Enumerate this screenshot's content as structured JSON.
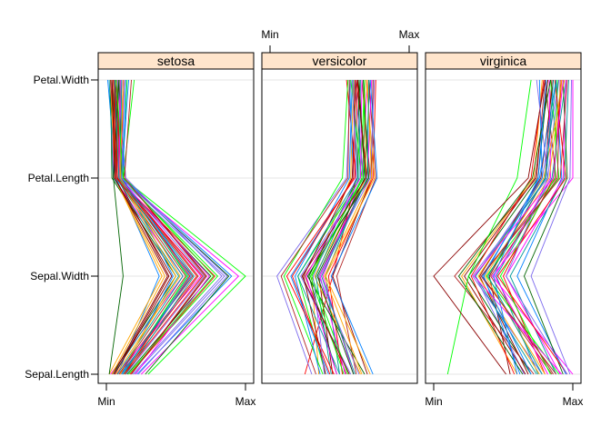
{
  "chart_data": {
    "type": "parallel",
    "variables": [
      "Sepal.Length",
      "Sepal.Width",
      "Petal.Length",
      "Petal.Width"
    ],
    "scale_labels": {
      "min": "Min",
      "max": "Max"
    },
    "value_range": [
      0,
      1
    ],
    "grid": true,
    "strip_color": "#ffe5cc",
    "palette": [
      "#0080ff",
      "#ff00ff",
      "#006400",
      "#ff0000",
      "#ffa500",
      "#00ff00",
      "#8b0000",
      "#7b68ee",
      "#009999",
      "#b22222"
    ],
    "panels": [
      {
        "label": "setosa",
        "records": [
          [
            0.08,
            0.38,
            0.07,
            0.01
          ],
          [
            0.03,
            0.55,
            0.05,
            0.04
          ],
          [
            0.04,
            0.5,
            0.04,
            0.03
          ],
          [
            0.1,
            0.65,
            0.09,
            0.08
          ],
          [
            0.02,
            0.4,
            0.06,
            0.05
          ],
          [
            0.12,
            0.58,
            0.11,
            0.1
          ],
          [
            0.06,
            0.45,
            0.08,
            0.06
          ],
          [
            0.14,
            0.7,
            0.1,
            0.12
          ],
          [
            0.05,
            0.52,
            0.05,
            0.02
          ],
          [
            0.09,
            0.62,
            0.07,
            0.09
          ],
          [
            0.11,
            0.48,
            0.12,
            0.07
          ],
          [
            0.07,
            0.68,
            0.09,
            0.11
          ],
          [
            0.15,
            0.75,
            0.08,
            0.04
          ],
          [
            0.13,
            0.6,
            0.1,
            0.13
          ],
          [
            0.04,
            0.42,
            0.06,
            0.03
          ],
          [
            0.16,
            0.8,
            0.11,
            0.15
          ],
          [
            0.18,
            0.72,
            0.13,
            0.06
          ],
          [
            0.2,
            0.85,
            0.09,
            0.1
          ],
          [
            0.08,
            0.55,
            0.07,
            0.05
          ],
          [
            0.12,
            0.66,
            0.1,
            0.08
          ],
          [
            0.22,
            0.9,
            0.12,
            0.14
          ],
          [
            0.25,
            0.95,
            0.1,
            0.12
          ],
          [
            0.28,
            0.88,
            0.11,
            0.09
          ],
          [
            0.17,
            0.78,
            0.08,
            0.07
          ],
          [
            0.1,
            0.5,
            0.09,
            0.13
          ],
          [
            0.3,
            1.0,
            0.12,
            0.2
          ],
          [
            0.06,
            0.47,
            0.06,
            0.06
          ],
          [
            0.19,
            0.83,
            0.14,
            0.08
          ],
          [
            0.14,
            0.63,
            0.1,
            0.11
          ],
          [
            0.09,
            0.57,
            0.08,
            0.03
          ],
          [
            0.11,
            0.61,
            0.11,
            0.16
          ],
          [
            0.21,
            0.74,
            0.09,
            0.1
          ],
          [
            0.02,
            0.12,
            0.05,
            0.09
          ],
          [
            0.13,
            0.69,
            0.07,
            0.05
          ],
          [
            0.07,
            0.53,
            0.1,
            0.12
          ],
          [
            0.16,
            0.77,
            0.12,
            0.07
          ],
          [
            0.05,
            0.44,
            0.06,
            0.04
          ],
          [
            0.23,
            0.87,
            0.11,
            0.13
          ],
          [
            0.12,
            0.59,
            0.09,
            0.06
          ],
          [
            0.18,
            0.71,
            0.13,
            0.18
          ]
        ]
      },
      {
        "label": "versicolor",
        "records": [
          [
            0.25,
            0.45,
            0.62,
            0.55
          ],
          [
            0.35,
            0.3,
            0.58,
            0.6
          ],
          [
            0.4,
            0.2,
            0.65,
            0.68
          ],
          [
            0.45,
            0.35,
            0.7,
            0.62
          ],
          [
            0.3,
            0.05,
            0.55,
            0.58
          ],
          [
            0.5,
            0.4,
            0.68,
            0.72
          ],
          [
            0.55,
            0.25,
            0.72,
            0.66
          ],
          [
            0.42,
            0.15,
            0.6,
            0.57
          ],
          [
            0.6,
            0.38,
            0.66,
            0.7
          ],
          [
            0.48,
            0.28,
            0.63,
            0.64
          ],
          [
            0.52,
            0.42,
            0.74,
            0.76
          ],
          [
            0.65,
            0.32,
            0.69,
            0.68
          ],
          [
            0.38,
            0.1,
            0.52,
            0.56
          ],
          [
            0.7,
            0.45,
            0.73,
            0.74
          ],
          [
            0.58,
            0.22,
            0.67,
            0.61
          ],
          [
            0.44,
            0.33,
            0.64,
            0.65
          ],
          [
            0.62,
            0.48,
            0.76,
            0.71
          ],
          [
            0.36,
            0.18,
            0.57,
            0.59
          ],
          [
            0.54,
            0.36,
            0.7,
            0.73
          ],
          [
            0.68,
            0.27,
            0.71,
            0.67
          ],
          [
            0.46,
            0.12,
            0.61,
            0.63
          ],
          [
            0.72,
            0.4,
            0.75,
            0.69
          ],
          [
            0.56,
            0.3,
            0.66,
            0.58
          ],
          [
            0.4,
            0.24,
            0.59,
            0.62
          ],
          [
            0.64,
            0.35,
            0.72,
            0.75
          ],
          [
            0.5,
            0.2,
            0.63,
            0.6
          ],
          [
            0.33,
            0.08,
            0.56,
            0.57
          ],
          [
            0.74,
            0.44,
            0.77,
            0.72
          ],
          [
            0.48,
            0.26,
            0.65,
            0.66
          ],
          [
            0.6,
            0.34,
            0.68,
            0.64
          ],
          [
            0.43,
            0.16,
            0.6,
            0.61
          ],
          [
            0.66,
            0.39,
            0.73,
            0.7
          ],
          [
            0.53,
            0.29,
            0.67,
            0.68
          ],
          [
            0.57,
            0.23,
            0.69,
            0.63
          ],
          [
            0.39,
            0.31,
            0.62,
            0.59
          ],
          [
            0.61,
            0.37,
            0.7,
            0.71
          ]
        ]
      },
      {
        "label": "virginica",
        "records": [
          [
            0.55,
            0.4,
            0.8,
            0.85
          ],
          [
            0.65,
            0.3,
            0.78,
            0.9
          ],
          [
            0.75,
            0.45,
            0.85,
            0.95
          ],
          [
            0.85,
            0.35,
            0.88,
            0.8
          ],
          [
            0.95,
            0.6,
            0.92,
            0.88
          ],
          [
            1.0,
            0.42,
            1.0,
            1.0
          ],
          [
            0.7,
            0.25,
            0.75,
            0.82
          ],
          [
            0.8,
            0.5,
            0.86,
            0.92
          ],
          [
            0.6,
            0.2,
            0.72,
            0.78
          ],
          [
            0.9,
            0.38,
            0.9,
            0.84
          ],
          [
            0.68,
            0.33,
            0.77,
            0.86
          ],
          [
            0.78,
            0.28,
            0.82,
            0.9
          ],
          [
            0.88,
            0.55,
            0.94,
            0.97
          ],
          [
            0.72,
            0.15,
            0.74,
            0.8
          ],
          [
            0.62,
            0.36,
            0.76,
            0.88
          ],
          [
            0.82,
            0.44,
            0.84,
            0.83
          ],
          [
            0.93,
            0.65,
            0.96,
            0.93
          ],
          [
            0.58,
            0.27,
            0.7,
            0.79
          ],
          [
            0.76,
            0.32,
            0.79,
            0.94
          ],
          [
            0.84,
            0.48,
            0.87,
            0.89
          ],
          [
            0.66,
            0.22,
            0.73,
            0.82
          ],
          [
            0.98,
            0.7,
            0.98,
            0.99
          ],
          [
            0.74,
            0.3,
            0.81,
            0.86
          ],
          [
            0.86,
            0.41,
            0.89,
            0.91
          ],
          [
            0.7,
            0.35,
            0.78,
            0.76
          ],
          [
            0.91,
            0.52,
            0.93,
            0.95
          ],
          [
            0.64,
            0.18,
            0.71,
            0.84
          ],
          [
            0.96,
            0.46,
            0.95,
            0.87
          ],
          [
            0.8,
            0.37,
            0.83,
            0.92
          ],
          [
            0.1,
            0.25,
            0.6,
            0.7
          ],
          [
            0.52,
            0.0,
            0.68,
            0.8
          ],
          [
            0.96,
            0.52,
            0.82,
            0.74
          ],
          [
            0.78,
            0.39,
            0.8,
            0.88
          ],
          [
            0.88,
            0.34,
            0.91,
            0.96
          ],
          [
            0.6,
            0.43,
            0.75,
            0.81
          ],
          [
            0.92,
            0.29,
            0.86,
            0.93
          ]
        ]
      }
    ]
  }
}
